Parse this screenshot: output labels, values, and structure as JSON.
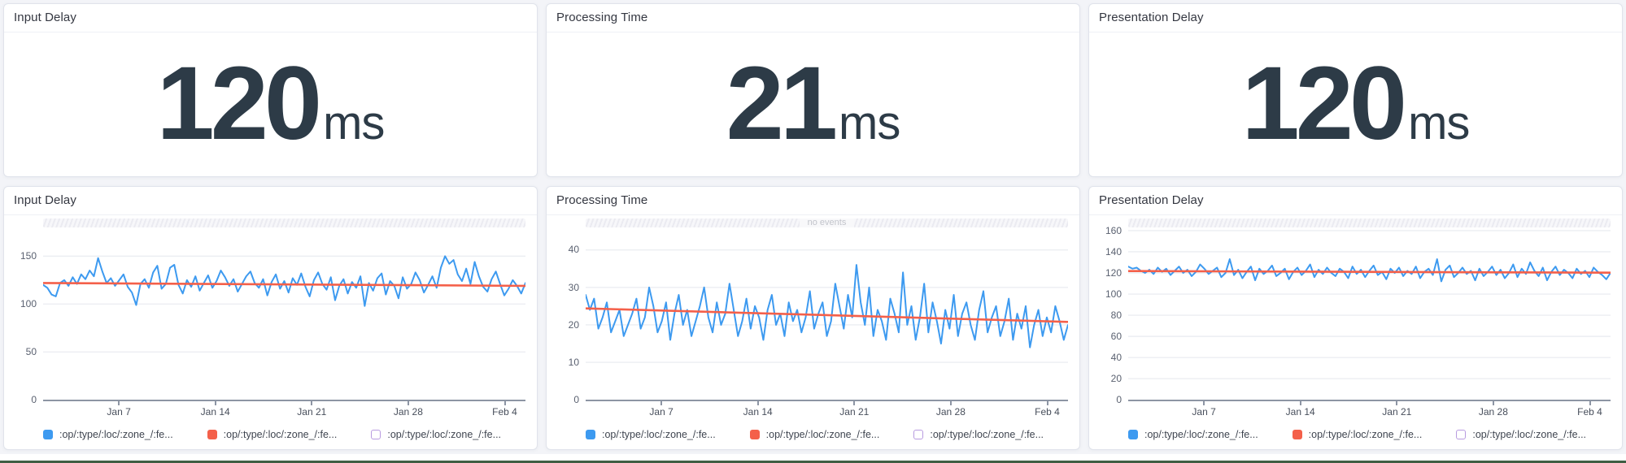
{
  "page": {
    "background": "#f3f4f8",
    "edge_bar_color": "#3f5e43"
  },
  "colors": {
    "panel_background": "#ffffff",
    "panel_border": "#e0e3eb",
    "title_text": "#343741",
    "metric_text": "#2d3b47",
    "series_line": "#3d9af0",
    "trend_line": "#f4604a",
    "gridline": "#eceef2",
    "axis_line": "#8d95a4",
    "axis_text": "#5a6170",
    "band_text": "#c2c4cb",
    "outline_swatch_border": "#b89be0"
  },
  "metrics": [
    {
      "title": "Input Delay",
      "value": "120",
      "unit": "ms"
    },
    {
      "title": "Processing Time",
      "value": "21",
      "unit": "ms"
    },
    {
      "title": "Presentation Delay",
      "value": "120",
      "unit": "ms"
    }
  ],
  "legend": {
    "items": [
      {
        "label": ":op/:type/:loc/:zone_/:fe...",
        "swatch": "#3d9af0"
      },
      {
        "label": ":op/:type/:loc/:zone_/:fe...",
        "swatch": "#f4604a"
      },
      {
        "label": ":op/:type/:loc/:zone_/:fe...",
        "swatch": "#ffffff",
        "border": "#b89be0"
      }
    ]
  },
  "chart_data": [
    {
      "type": "line",
      "title": "Input Delay",
      "ylabel": "",
      "xlabel": "",
      "unit": "ms",
      "band_label": "",
      "y_ticks": [
        0,
        50,
        100,
        150
      ],
      "ymax": 180,
      "ylim": [
        0,
        180
      ],
      "x_ticks": [
        {
          "label": "Jan 7",
          "pos": 0.157
        },
        {
          "label": "Jan 14",
          "pos": 0.357
        },
        {
          "label": "Jan 21",
          "pos": 0.557
        },
        {
          "label": "Jan 28",
          "pos": 0.757
        },
        {
          "label": "Feb 4",
          "pos": 0.957
        }
      ],
      "series": [
        {
          "name": ":op/:type/:loc/:zone_/:fe...",
          "values": [
            120,
            117,
            110,
            108,
            122,
            125,
            119,
            128,
            121,
            131,
            126,
            135,
            129,
            148,
            134,
            122,
            127,
            119,
            125,
            131,
            118,
            112,
            99,
            121,
            126,
            117,
            133,
            140,
            116,
            121,
            138,
            141,
            120,
            111,
            125,
            118,
            129,
            114,
            122,
            130,
            117,
            124,
            135,
            128,
            119,
            126,
            113,
            121,
            129,
            134,
            122,
            117,
            126,
            109,
            123,
            131,
            116,
            124,
            112,
            127,
            120,
            132,
            118,
            108,
            125,
            133,
            121,
            115,
            128,
            104,
            119,
            126,
            111,
            123,
            117,
            129,
            98,
            122,
            114,
            127,
            132,
            110,
            124,
            119,
            106,
            128,
            116,
            121,
            133,
            125,
            112,
            120,
            129,
            117,
            138,
            150,
            142,
            146,
            131,
            124,
            137,
            121,
            144,
            129,
            118,
            113,
            126,
            134,
            121,
            109,
            116,
            125,
            119,
            111,
            122
          ]
        },
        {
          "name": ":op/:type/:loc/:zone_/:fe... (trend)",
          "trend": {
            "start": 122,
            "end": 119
          }
        }
      ]
    },
    {
      "type": "line",
      "title": "Processing Time",
      "ylabel": "",
      "xlabel": "",
      "unit": "ms",
      "band_label": "no events",
      "y_ticks": [
        0,
        10,
        20,
        30,
        40
      ],
      "ymax": 46,
      "ylim": [
        0,
        46
      ],
      "x_ticks": [
        {
          "label": "Jan 7",
          "pos": 0.157
        },
        {
          "label": "Jan 14",
          "pos": 0.357
        },
        {
          "label": "Jan 21",
          "pos": 0.557
        },
        {
          "label": "Jan 28",
          "pos": 0.757
        },
        {
          "label": "Feb 4",
          "pos": 0.957
        }
      ],
      "series": [
        {
          "name": ":op/:type/:loc/:zone_/:fe...",
          "values": [
            28,
            24,
            27,
            19,
            22,
            26,
            18,
            21,
            24,
            17,
            20,
            23,
            27,
            19,
            22,
            30,
            25,
            18,
            21,
            26,
            16,
            23,
            28,
            20,
            24,
            17,
            21,
            25,
            30,
            22,
            18,
            26,
            20,
            23,
            31,
            24,
            17,
            21,
            27,
            19,
            25,
            22,
            16,
            24,
            28,
            20,
            23,
            17,
            26,
            21,
            24,
            18,
            22,
            29,
            19,
            23,
            26,
            17,
            21,
            31,
            25,
            19,
            28,
            22,
            36,
            26,
            20,
            30,
            17,
            24,
            21,
            16,
            27,
            23,
            18,
            34,
            20,
            25,
            16,
            22,
            31,
            18,
            26,
            21,
            15,
            24,
            19,
            28,
            17,
            23,
            26,
            20,
            16,
            24,
            29,
            18,
            22,
            25,
            17,
            21,
            27,
            16,
            23,
            19,
            25,
            14,
            20,
            24,
            17,
            22,
            18,
            25,
            21,
            16,
            20
          ]
        },
        {
          "name": ":op/:type/:loc/:zone_/:fe... (trend)",
          "trend": {
            "start": 24.4,
            "end": 20.8
          }
        }
      ]
    },
    {
      "type": "line",
      "title": "Presentation Delay",
      "ylabel": "",
      "xlabel": "",
      "unit": "ms",
      "band_label": "",
      "y_ticks": [
        0,
        20,
        40,
        60,
        80,
        100,
        120,
        140,
        160
      ],
      "ymax": 163,
      "ylim": [
        0,
        163
      ],
      "x_ticks": [
        {
          "label": "Jan 7",
          "pos": 0.157
        },
        {
          "label": "Jan 14",
          "pos": 0.357
        },
        {
          "label": "Jan 21",
          "pos": 0.557
        },
        {
          "label": "Jan 28",
          "pos": 0.757
        },
        {
          "label": "Feb 4",
          "pos": 0.957
        }
      ],
      "series": [
        {
          "name": ":op/:type/:loc/:zone_/:fe...",
          "values": [
            126,
            124,
            125,
            122,
            120,
            123,
            119,
            125,
            121,
            124,
            118,
            122,
            126,
            120,
            123,
            117,
            121,
            128,
            124,
            119,
            122,
            125,
            116,
            120,
            133,
            118,
            123,
            115,
            121,
            126,
            113,
            124,
            119,
            122,
            127,
            117,
            120,
            124,
            114,
            121,
            125,
            118,
            122,
            128,
            116,
            123,
            119,
            125,
            120,
            117,
            124,
            121,
            115,
            126,
            119,
            123,
            116,
            122,
            127,
            118,
            121,
            114,
            124,
            120,
            125,
            117,
            122,
            119,
            126,
            115,
            121,
            124,
            118,
            133,
            112,
            123,
            127,
            116,
            120,
            125,
            119,
            122,
            113,
            124,
            117,
            121,
            126,
            118,
            123,
            115,
            120,
            128,
            116,
            124,
            119,
            130,
            122,
            117,
            125,
            113,
            121,
            126,
            118,
            123,
            120,
            115,
            124,
            119,
            122,
            116,
            125,
            121,
            118,
            114,
            120
          ]
        },
        {
          "name": ":op/:type/:loc/:zone_/:fe... (trend)",
          "trend": {
            "start": 121.8,
            "end": 120.2
          }
        }
      ]
    }
  ]
}
